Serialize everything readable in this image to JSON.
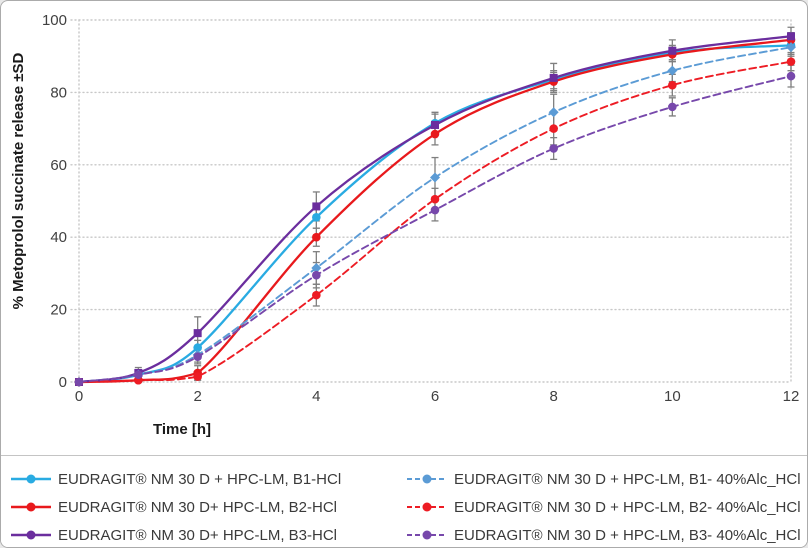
{
  "figure": {
    "background": "#FFFFFF",
    "border_color": "#ABABAB",
    "grid_color": "#C8C8C8",
    "error_bar_color": "#7F7F7F"
  },
  "chart_data": {
    "type": "line",
    "title": "",
    "xlabel": "Time [h]",
    "ylabel": "% Metoprolol succinate release ±SD",
    "x": [
      0,
      1,
      2,
      4,
      6,
      8,
      10,
      12
    ],
    "xticks": [
      0,
      2,
      4,
      6,
      8,
      10,
      12
    ],
    "yticks": [
      0,
      20,
      40,
      60,
      80,
      100
    ],
    "xlim": [
      0,
      12
    ],
    "ylim": [
      0,
      100
    ],
    "grid": "horizontal-dotted",
    "legend_position": "bottom-two-columns",
    "series": [
      {
        "label": "EUDRAGIT® NM 30 D + HPC-LM, B1-HCl",
        "color": "#29ABE2",
        "style": "solid",
        "marker": "circle",
        "values": [
          0,
          2,
          9.5,
          45.5,
          71.5,
          83.5,
          91,
          93
        ],
        "sd": [
          0,
          1,
          2,
          3,
          3,
          2.5,
          2,
          2.5
        ]
      },
      {
        "label": "EUDRAGIT® NM 30 D+ HPC-LM, B2-HCl",
        "color": "#E8191C",
        "style": "solid",
        "marker": "circle",
        "values": [
          0,
          0.5,
          2.5,
          40,
          68.5,
          83,
          90.5,
          94.5
        ],
        "sd": [
          0,
          0.5,
          2,
          2.5,
          3,
          2.5,
          2,
          2
        ]
      },
      {
        "label": "EUDRAGIT® NM 30 D+ HPC-LM, B3-HCl",
        "color": "#6B2E9E",
        "style": "solid",
        "marker": "square",
        "values": [
          0,
          2.5,
          13.5,
          48.5,
          71,
          84,
          91.5,
          95.5
        ],
        "sd": [
          0,
          1.5,
          4.5,
          4,
          3,
          4,
          3,
          2.5
        ]
      },
      {
        "label": "EUDRAGIT® NM 30 D + HPC-LM, B1- 40%Alc_HCl",
        "color": "#5B9BD5",
        "style": "dashed",
        "marker": "diamond",
        "values": [
          0,
          2,
          7.5,
          31.5,
          56.5,
          74.5,
          86,
          92.5
        ],
        "sd": [
          0,
          1,
          2,
          4.5,
          5.5,
          5,
          3,
          2.5
        ]
      },
      {
        "label": "EUDRAGIT® NM 30 D + HPC-LM, B2- 40%Alc_HCl",
        "color": "#ED1C24",
        "style": "dashed",
        "marker": "circle",
        "values": [
          0,
          0.5,
          1.5,
          24,
          50.5,
          70,
          82,
          88.5
        ],
        "sd": [
          0,
          0.5,
          1,
          3,
          3,
          4.5,
          3,
          2.5
        ]
      },
      {
        "label": "EUDRAGIT® NM 30 D + HPC-LM, B3- 40%Alc_HCl",
        "color": "#7748AB",
        "style": "dashed",
        "marker": "circle",
        "values": [
          0,
          2,
          7,
          29.5,
          47.5,
          64.5,
          76,
          84.5
        ],
        "sd": [
          0,
          1,
          2,
          3.5,
          3,
          3,
          2.5,
          3
        ]
      }
    ]
  }
}
